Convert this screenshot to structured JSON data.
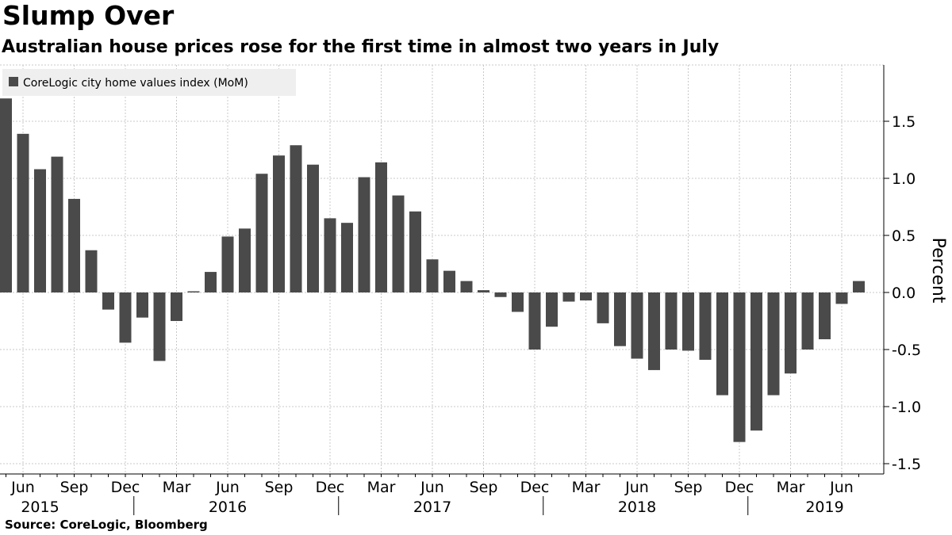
{
  "header": {
    "title": "Slump Over",
    "subtitle": "Australian house prices rose for the first time in almost two years in July"
  },
  "footer": {
    "source": "Source: CoreLogic, Bloomberg"
  },
  "colors": {
    "bar": "#4a4a4a",
    "grid": "#c8c8c8",
    "axis": "#000000",
    "legend_bg": "#efefef"
  },
  "chart_data": {
    "type": "bar",
    "title": "Slump Over",
    "subtitle": "Australian house prices rose for the first time in almost two years in July",
    "ylabel": "Percent",
    "ylim": [
      -1.6,
      2.0
    ],
    "y_ticks": [
      "1.5",
      "1.0",
      "0.5",
      "0.0",
      "-0.5",
      "-1.0",
      "-1.5"
    ],
    "y_tick_values": [
      1.5,
      1.0,
      0.5,
      0.0,
      -0.5,
      -1.0,
      -1.5
    ],
    "grid": true,
    "legend_position": "top-left",
    "month_tick_labels": [
      "Jun",
      "Sep",
      "Dec",
      "Mar",
      "Jun",
      "Sep",
      "Dec",
      "Mar",
      "Jun",
      "Sep",
      "Dec",
      "Mar",
      "Jun",
      "Sep",
      "Dec",
      "Mar",
      "Jun"
    ],
    "month_tick_categories": [
      "2015-06",
      "2015-09",
      "2015-12",
      "2016-03",
      "2016-06",
      "2016-09",
      "2016-12",
      "2017-03",
      "2017-06",
      "2017-09",
      "2017-12",
      "2018-03",
      "2018-06",
      "2018-09",
      "2018-12",
      "2019-03",
      "2019-06"
    ],
    "year_labels": [
      "2015",
      "2016",
      "2017",
      "2018",
      "2019"
    ],
    "year_label_categories": [
      "2015-07",
      "2016-06",
      "2017-06",
      "2018-06",
      "2019-05"
    ],
    "categories": [
      "2015-05",
      "2015-06",
      "2015-07",
      "2015-08",
      "2015-09",
      "2015-10",
      "2015-11",
      "2015-12",
      "2016-01",
      "2016-02",
      "2016-03",
      "2016-04",
      "2016-05",
      "2016-06",
      "2016-07",
      "2016-08",
      "2016-09",
      "2016-10",
      "2016-11",
      "2016-12",
      "2017-01",
      "2017-02",
      "2017-03",
      "2017-04",
      "2017-05",
      "2017-06",
      "2017-07",
      "2017-08",
      "2017-09",
      "2017-10",
      "2017-11",
      "2017-12",
      "2018-01",
      "2018-02",
      "2018-03",
      "2018-04",
      "2018-05",
      "2018-06",
      "2018-07",
      "2018-08",
      "2018-09",
      "2018-10",
      "2018-11",
      "2018-12",
      "2019-01",
      "2019-02",
      "2019-03",
      "2019-04",
      "2019-05",
      "2019-06",
      "2019-07"
    ],
    "series": [
      {
        "name": "CoreLogic city home values index (MoM)",
        "values": [
          1.7,
          1.39,
          1.08,
          1.19,
          0.82,
          0.37,
          -0.15,
          -0.44,
          -0.22,
          -0.6,
          -0.25,
          0.01,
          0.18,
          0.49,
          0.56,
          1.04,
          1.2,
          1.29,
          1.12,
          0.65,
          0.61,
          1.01,
          1.14,
          0.85,
          0.71,
          0.29,
          0.19,
          0.1,
          0.02,
          -0.04,
          -0.17,
          -0.5,
          -0.3,
          -0.08,
          -0.07,
          -0.27,
          -0.47,
          -0.58,
          -0.68,
          -0.5,
          -0.51,
          -0.59,
          -0.9,
          -1.31,
          -1.21,
          -0.9,
          -0.71,
          -0.5,
          -0.41,
          -0.1,
          0.1
        ]
      }
    ]
  }
}
